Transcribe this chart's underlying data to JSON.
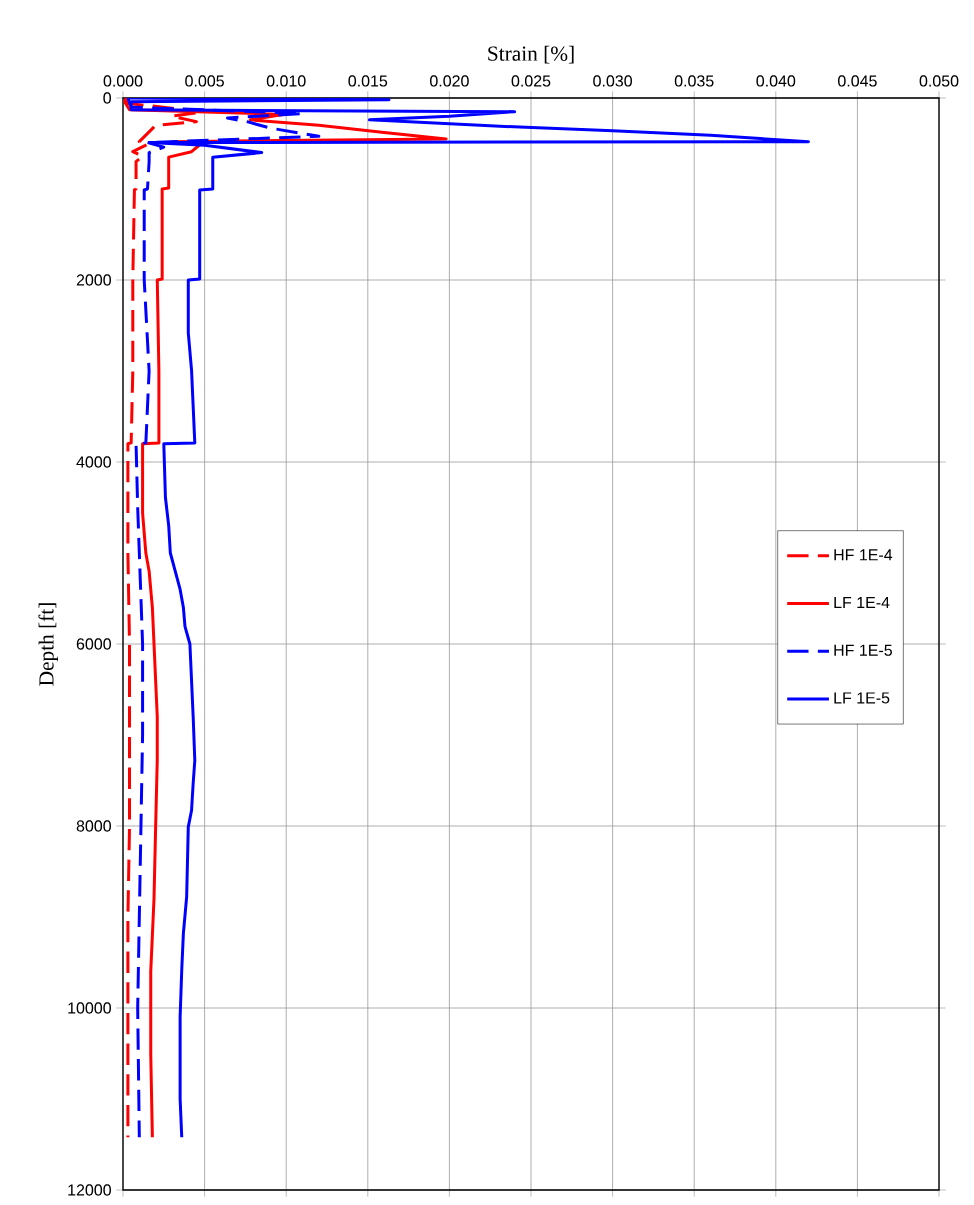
{
  "chart_data": {
    "type": "line",
    "xlabel": "Strain [%]",
    "ylabel": "Depth [ft]",
    "xlim": [
      0,
      0.05
    ],
    "ylim": [
      12000,
      0
    ],
    "xticks": [
      {
        "value": 0,
        "label": "0.000"
      },
      {
        "value": 0.005,
        "label": "0.005"
      },
      {
        "value": 0.01,
        "label": "0.010"
      },
      {
        "value": 0.015,
        "label": "0.015"
      },
      {
        "value": 0.02,
        "label": "0.020"
      },
      {
        "value": 0.025,
        "label": "0.025"
      },
      {
        "value": 0.03,
        "label": "0.030"
      },
      {
        "value": 0.035,
        "label": "0.035"
      },
      {
        "value": 0.04,
        "label": "0.040"
      },
      {
        "value": 0.045,
        "label": "0.045"
      },
      {
        "value": 0.05,
        "label": "0.050"
      }
    ],
    "yticks": [
      0,
      2000,
      4000,
      6000,
      8000,
      10000,
      12000
    ],
    "grid": true,
    "legend": "right",
    "marker": "none",
    "series": [
      {
        "name": "HF 1E-4",
        "color": "#ff0000",
        "line_style": "dashed",
        "x": [
          0.0002,
          0.0003,
          0.005,
          0.003,
          0.0045,
          0.002,
          0.001,
          0.0015,
          0.0006,
          0.0012,
          0.0008,
          0.0008,
          0.0007,
          0.0006,
          0.0006,
          0.0005,
          0.0003,
          0.0003,
          0.0004,
          0.0004,
          0.0003,
          0.0003
        ],
        "values": [
          0,
          60,
          150,
          200,
          260,
          300,
          480,
          510,
          590,
          640,
          700,
          1000,
          1010,
          2000,
          3000,
          3790,
          3800,
          5000,
          6000,
          8000,
          9000,
          11420
        ]
      },
      {
        "name": "LF 1E-4",
        "color": "#ff0000",
        "line_style": "solid",
        "x": [
          0.0002,
          0.0001,
          0.0004,
          0.0099,
          0.0078,
          0.012,
          0.016,
          0.0198,
          0.003,
          0.0048,
          0.0042,
          0.0028,
          0.0028,
          0.0024,
          0.0024,
          0.0021,
          0.0022,
          0.0022,
          0.0012,
          0.0012,
          0.0014,
          0.0016,
          0.0018,
          0.0019,
          0.0021,
          0.0021,
          0.002,
          0.0019,
          0.0018,
          0.0017,
          0.0017,
          0.0018
        ],
        "values": [
          0,
          40,
          130,
          180,
          240,
          300,
          380,
          450,
          480,
          500,
          590,
          650,
          990,
          1000,
          1990,
          2000,
          3000,
          3790,
          3800,
          4560,
          5000,
          5200,
          5600,
          6000,
          6800,
          7270,
          8010,
          8800,
          9200,
          9600,
          10500,
          11420
        ]
      },
      {
        "name": "HF 1E-5",
        "color": "#0000ff",
        "line_style": "dashed",
        "x": [
          0.0003,
          0.0005,
          0.011,
          0.0064,
          0.0076,
          0.009,
          0.012,
          0.0015,
          0.0025,
          0.0016,
          0.0016,
          0.0015,
          0.0013,
          0.0013,
          0.0016,
          0.0014,
          0.0008,
          0.0009,
          0.001,
          0.0012,
          0.0012,
          0.0011,
          0.001,
          0.0009,
          0.001
        ],
        "values": [
          0,
          100,
          170,
          220,
          260,
          330,
          420,
          490,
          540,
          600,
          700,
          1000,
          1010,
          2000,
          3000,
          3790,
          3800,
          4500,
          5000,
          6000,
          7000,
          8000,
          9000,
          10000,
          11420
        ]
      },
      {
        "name": "LF 1E-5",
        "color": "#0000ff",
        "line_style": "solid",
        "x": [
          0.0003,
          0.0163,
          0.0005,
          0.0005,
          0.024,
          0.02,
          0.0151,
          0.0243,
          0.03,
          0.036,
          0.042,
          0.0016,
          0.005,
          0.0085,
          0.0055,
          0.0055,
          0.0047,
          0.0047,
          0.004,
          0.004,
          0.0042,
          0.0044,
          0.0025,
          0.0026,
          0.0028,
          0.0029,
          0.0032,
          0.0035,
          0.0037,
          0.0038,
          0.0041,
          0.0043,
          0.0044,
          0.0043,
          0.0042,
          0.004,
          0.0039,
          0.0037,
          0.0036,
          0.0035,
          0.0035,
          0.0036
        ],
        "values": [
          0,
          20,
          40,
          130,
          150,
          200,
          240,
          320,
          360,
          410,
          480,
          490,
          520,
          600,
          650,
          1000,
          1010,
          1990,
          2000,
          2580,
          2990,
          3790,
          3800,
          4390,
          4700,
          5000,
          5200,
          5400,
          5600,
          5810,
          6000,
          6800,
          7280,
          7530,
          7830,
          8010,
          8780,
          9180,
          9580,
          10100,
          11000,
          11420
        ]
      }
    ]
  }
}
